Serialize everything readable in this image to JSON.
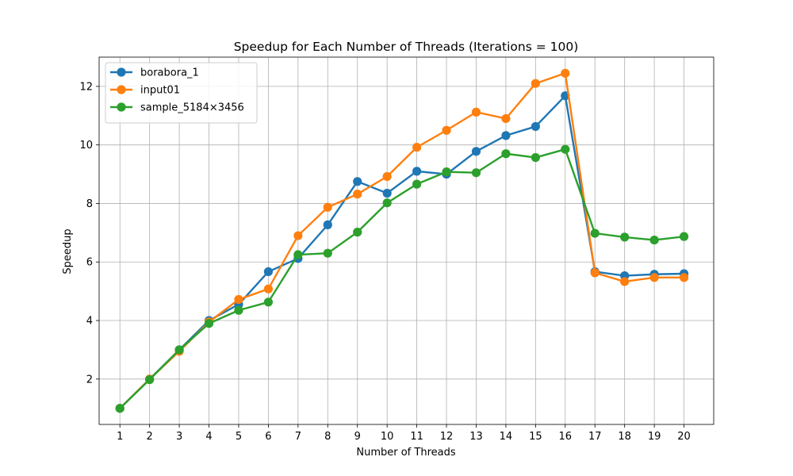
{
  "chart_data": {
    "type": "line",
    "title": "Speedup for Each Number of Threads (Iterations = 100)",
    "xlabel": "Number of Threads",
    "ylabel": "Speedup",
    "x": [
      1,
      2,
      3,
      4,
      5,
      6,
      7,
      8,
      9,
      10,
      11,
      12,
      13,
      14,
      15,
      16,
      17,
      18,
      19,
      20
    ],
    "xlim": [
      0.3,
      21.0
    ],
    "ylim": [
      0.45,
      13.0
    ],
    "yticks": [
      2,
      4,
      6,
      8,
      10,
      12
    ],
    "grid": true,
    "legend_position": "top-left",
    "series": [
      {
        "name": "borabora_1",
        "color": "#1f77b4",
        "values": [
          1.0,
          2.0,
          3.0,
          4.0,
          4.55,
          5.67,
          6.12,
          7.27,
          8.75,
          8.35,
          9.1,
          9.0,
          9.78,
          10.32,
          10.63,
          11.68,
          5.67,
          5.53,
          5.58,
          5.6
        ]
      },
      {
        "name": "input01",
        "color": "#ff7f0e",
        "values": [
          1.0,
          2.0,
          2.95,
          3.95,
          4.72,
          5.08,
          6.9,
          7.87,
          8.32,
          8.92,
          9.92,
          10.5,
          11.12,
          10.9,
          12.1,
          12.45,
          5.63,
          5.33,
          5.47,
          5.47
        ]
      },
      {
        "name": "sample_5184×3456",
        "color": "#2ca02c",
        "values": [
          1.0,
          1.98,
          3.0,
          3.9,
          4.35,
          4.63,
          6.25,
          6.3,
          7.02,
          8.02,
          8.66,
          9.08,
          9.05,
          9.7,
          9.57,
          9.85,
          6.98,
          6.85,
          6.75,
          6.87
        ]
      }
    ]
  }
}
